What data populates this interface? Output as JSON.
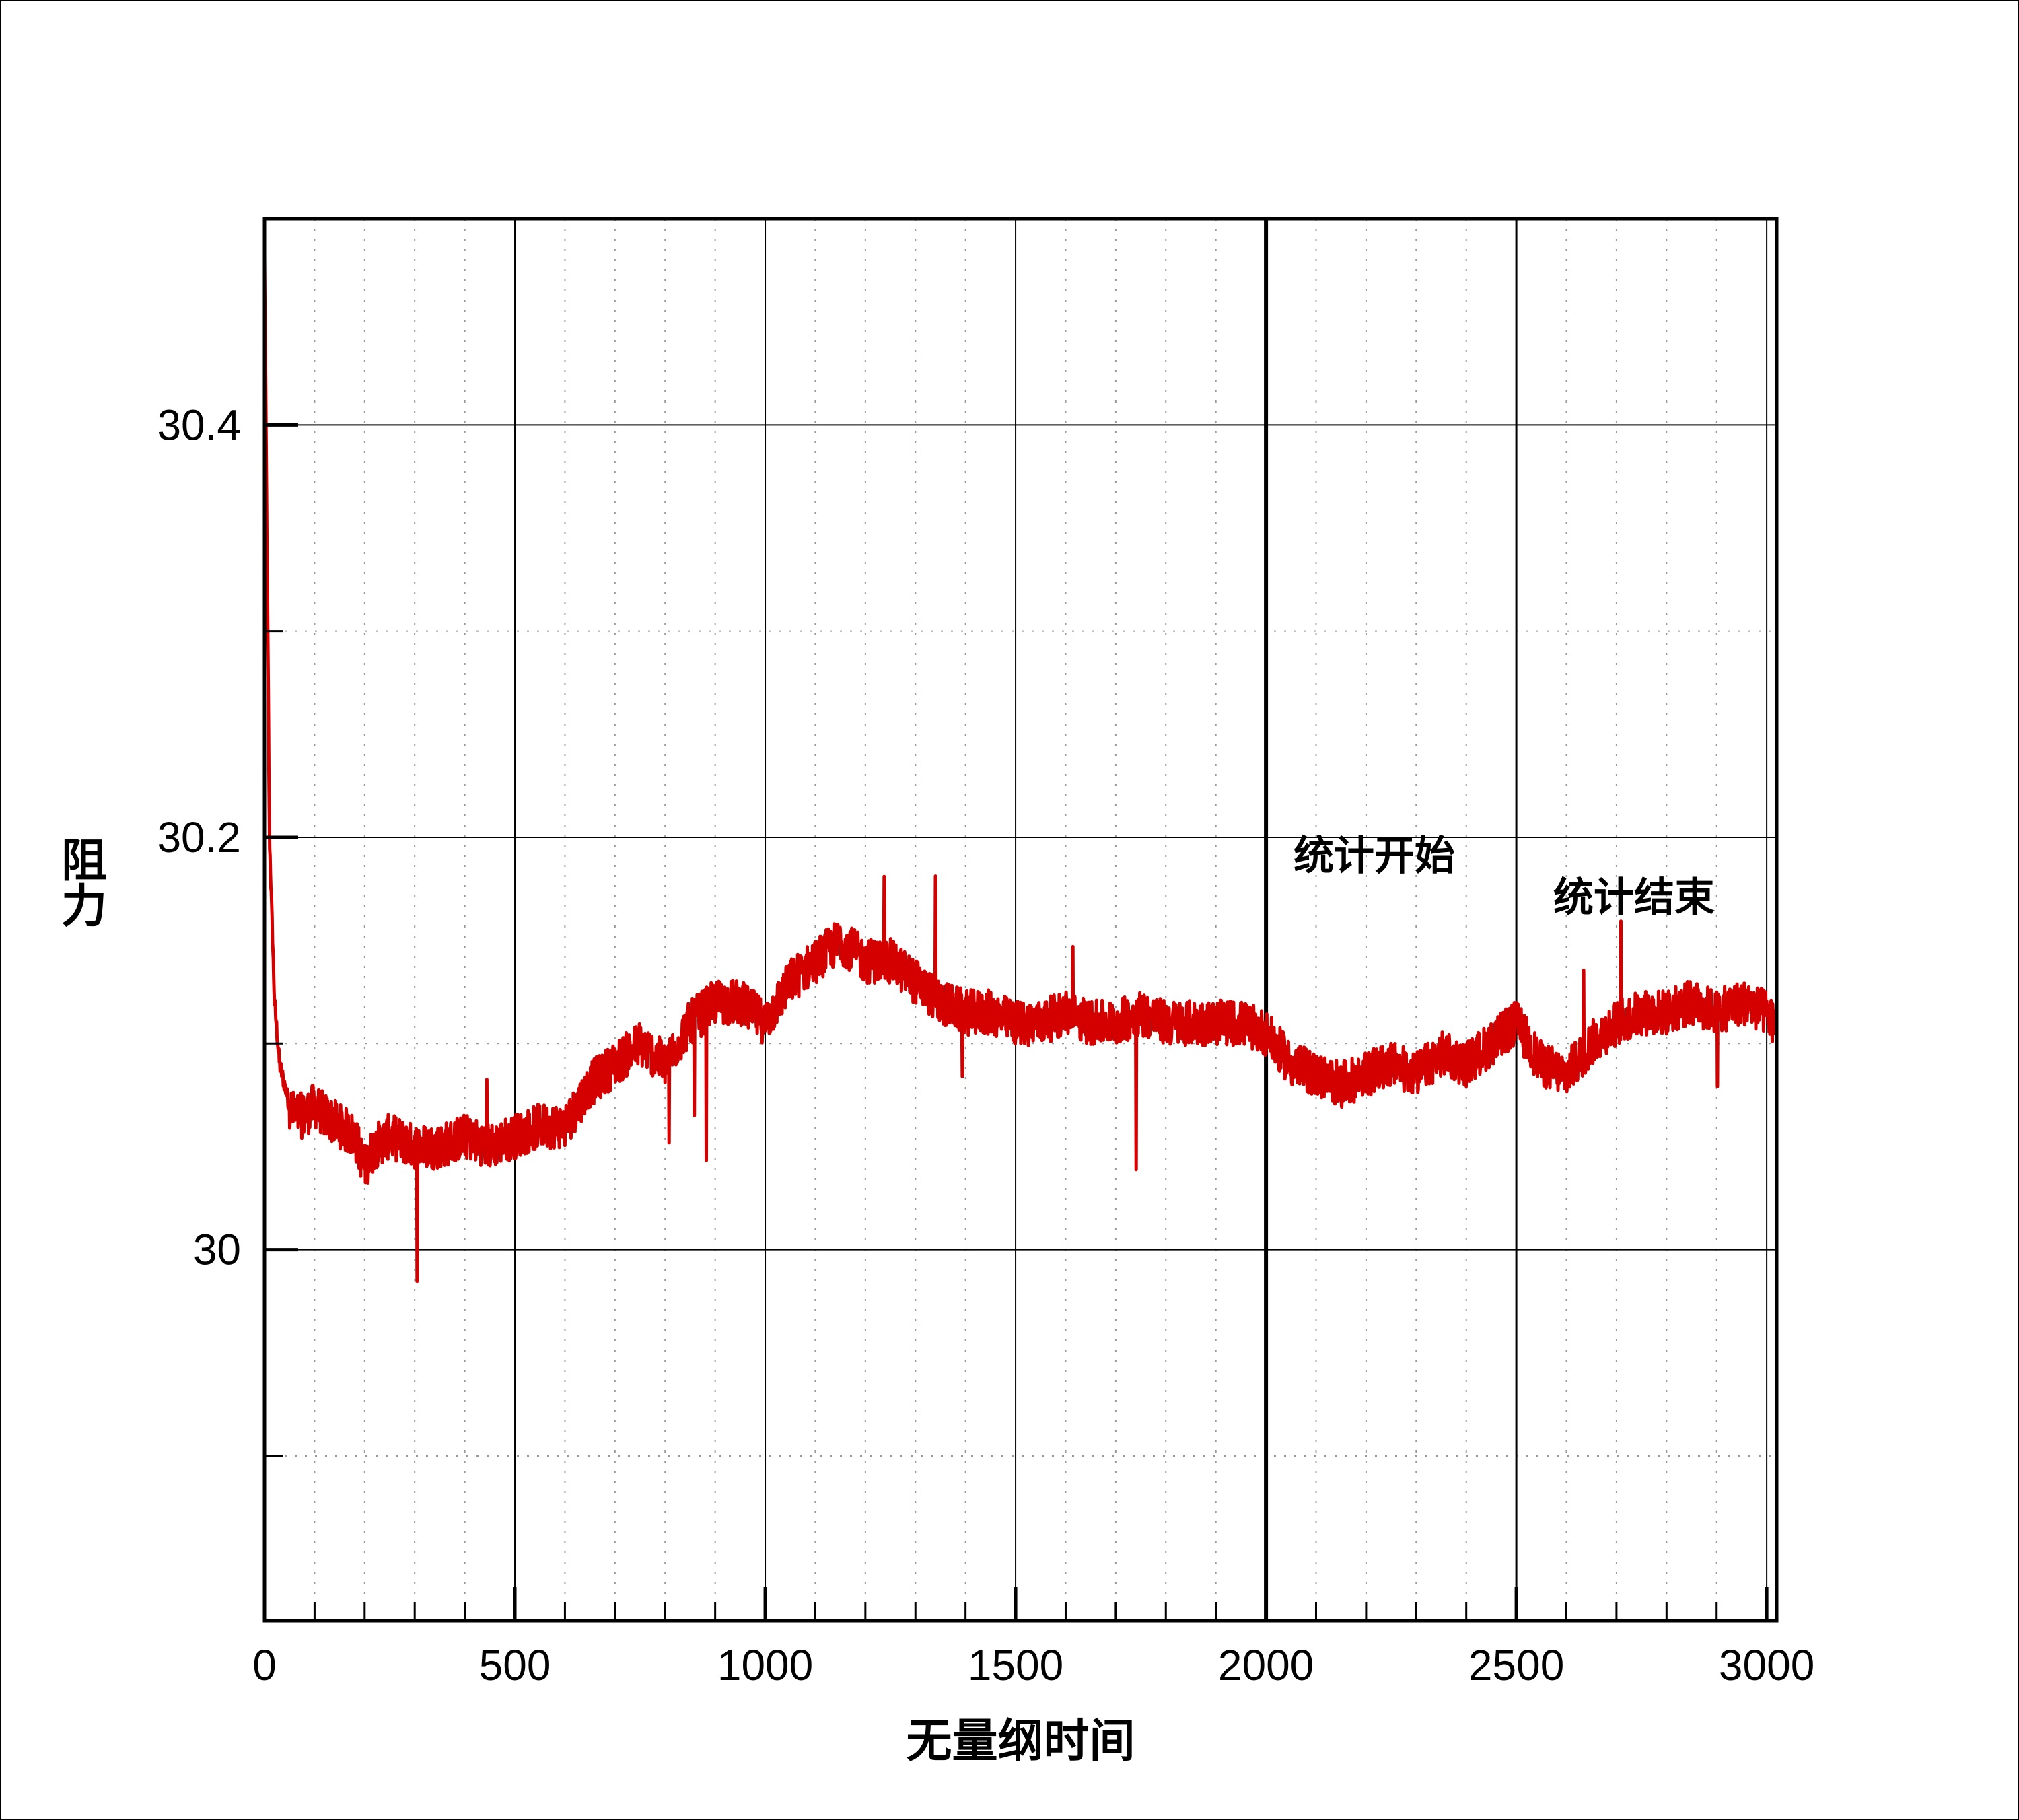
{
  "chart_data": {
    "type": "line",
    "xlabel": "无量纲时间",
    "ylabel": "阻力",
    "xlim": [
      0,
      3020
    ],
    "ylim": [
      29.82,
      30.5
    ],
    "x_ticks": [
      0,
      500,
      1000,
      1500,
      2000,
      2500,
      3000
    ],
    "x_tick_labels": [
      "0",
      "500",
      "1000",
      "1500",
      "2000",
      "2500",
      "3000"
    ],
    "y_ticks": [
      30,
      30.2,
      30.4
    ],
    "y_tick_labels": [
      "30",
      "30.2",
      "30.4"
    ],
    "grid": true,
    "series": [
      {
        "color": "#d40000",
        "x": [
          0,
          10,
          20,
          30,
          40,
          50,
          60,
          80,
          100,
          120,
          150,
          180,
          200,
          220,
          250,
          300,
          350,
          400,
          450,
          500,
          550,
          600,
          650,
          700,
          750,
          800,
          850,
          900,
          950,
          1000,
          1050,
          1100,
          1150,
          1200,
          1250,
          1300,
          1350,
          1400,
          1450,
          1500,
          1550,
          1600,
          1650,
          1700,
          1750,
          1800,
          1850,
          1900,
          1950,
          2000,
          2050,
          2100,
          2150,
          2200,
          2250,
          2300,
          2350,
          2400,
          2450,
          2500,
          2550,
          2600,
          2650,
          2700,
          2750,
          2800,
          2850,
          2900,
          2950,
          3000,
          3015
        ],
        "y": [
          30.48,
          30.2,
          30.12,
          30.09,
          30.08,
          30.07,
          30.065,
          30.065,
          30.07,
          30.065,
          30.06,
          30.055,
          30.04,
          30.05,
          30.055,
          30.05,
          30.05,
          30.055,
          30.05,
          30.055,
          30.06,
          30.06,
          30.08,
          30.09,
          30.1,
          30.09,
          30.11,
          30.12,
          30.12,
          30.11,
          30.13,
          30.14,
          30.15,
          30.14,
          30.14,
          30.13,
          30.12,
          30.115,
          30.115,
          30.11,
          30.11,
          30.115,
          30.11,
          30.11,
          30.115,
          30.11,
          30.11,
          30.11,
          30.11,
          30.105,
          30.09,
          30.085,
          30.08,
          30.085,
          30.09,
          30.085,
          30.095,
          30.09,
          30.1,
          30.11,
          30.09,
          30.085,
          30.1,
          30.11,
          30.115,
          30.115,
          30.12,
          30.115,
          30.12,
          30.115,
          30.11
        ]
      }
    ],
    "vertical_markers": [
      2000,
      2500
    ],
    "annotations": [
      "统计开始",
      "统计结束"
    ]
  }
}
